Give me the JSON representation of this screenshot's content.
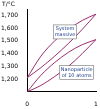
{
  "chart_data": {
    "type": "line",
    "ylabel": "T/°C",
    "x": [
      0,
      0.2,
      0.4,
      0.6,
      0.8,
      1
    ],
    "series": [
      {
        "color": "#9b2d6e",
        "values": [
          1210,
          1380,
          1500,
          1590,
          1660,
          1710
        ]
      },
      {
        "color": "#9b2d6e",
        "values": [
          1210,
          1290,
          1380,
          1480,
          1590,
          1710
        ]
      },
      {
        "color": "#9b2d6e",
        "values": [
          1100,
          1230,
          1330,
          1410,
          1470,
          1510
        ]
      },
      {
        "color": "#9b2d6e",
        "values": [
          1100,
          1150,
          1220,
          1300,
          1400,
          1510
        ]
      }
    ],
    "annotations": [
      {
        "text": "System massive",
        "x": 0.55,
        "y": 1570
      },
      {
        "text": "Nanoparticle of 10 atoms",
        "x": 0.72,
        "y": 1250
      }
    ],
    "xlim": [
      0,
      1
    ],
    "xticks": [
      0,
      1
    ],
    "ylim": [
      1100,
      1750
    ],
    "yticks": [
      1200,
      1300,
      1400,
      1500,
      1600,
      1700
    ],
    "grid": false
  }
}
